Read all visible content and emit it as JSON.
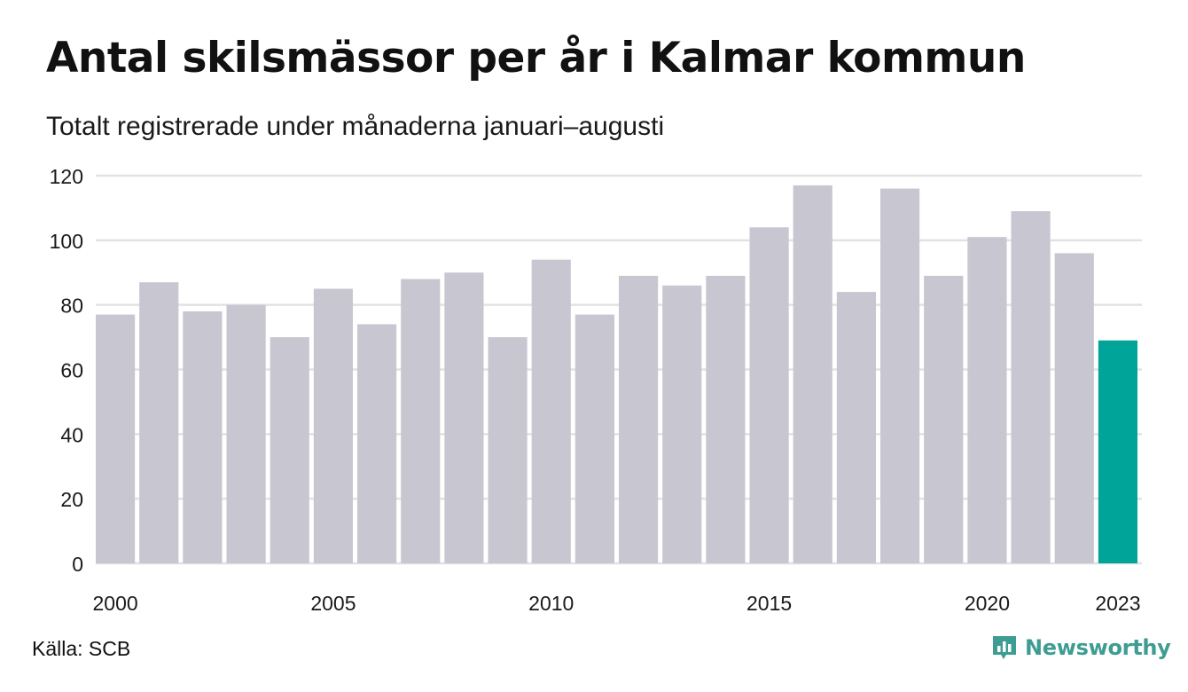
{
  "header": {
    "title": "Antal skilsmässor per år i Kalmar kommun",
    "subtitle": "Totalt registrerade under månaderna januari–augusti"
  },
  "footer": {
    "source": "Källa: SCB",
    "brand": "Newsworthy",
    "brand_icon": "newsworthy-logo-icon"
  },
  "colors": {
    "bar_default": "#c8c6d0",
    "bar_highlight": "#00a499",
    "grid": "#e2e2e2",
    "brand": "#3e9d93"
  },
  "chart_data": {
    "type": "bar",
    "title": "Antal skilsmässor per år i Kalmar kommun",
    "subtitle": "Totalt registrerade under månaderna januari–augusti",
    "categories": [
      2000,
      2001,
      2002,
      2003,
      2004,
      2005,
      2006,
      2007,
      2008,
      2009,
      2010,
      2011,
      2012,
      2013,
      2014,
      2015,
      2016,
      2017,
      2018,
      2019,
      2020,
      2021,
      2022,
      2023
    ],
    "values": [
      77,
      87,
      78,
      80,
      70,
      85,
      74,
      88,
      90,
      70,
      94,
      77,
      89,
      86,
      89,
      104,
      117,
      84,
      116,
      89,
      101,
      109,
      96,
      69
    ],
    "highlight_category": 2023,
    "x_tick_labels": [
      "2000",
      "2005",
      "2010",
      "2015",
      "2020",
      "2023"
    ],
    "y_ticks": [
      0,
      20,
      40,
      60,
      80,
      100,
      120
    ],
    "ylim": [
      0,
      120
    ],
    "xlabel": "",
    "ylabel": "",
    "grid": true,
    "legend": "none"
  }
}
